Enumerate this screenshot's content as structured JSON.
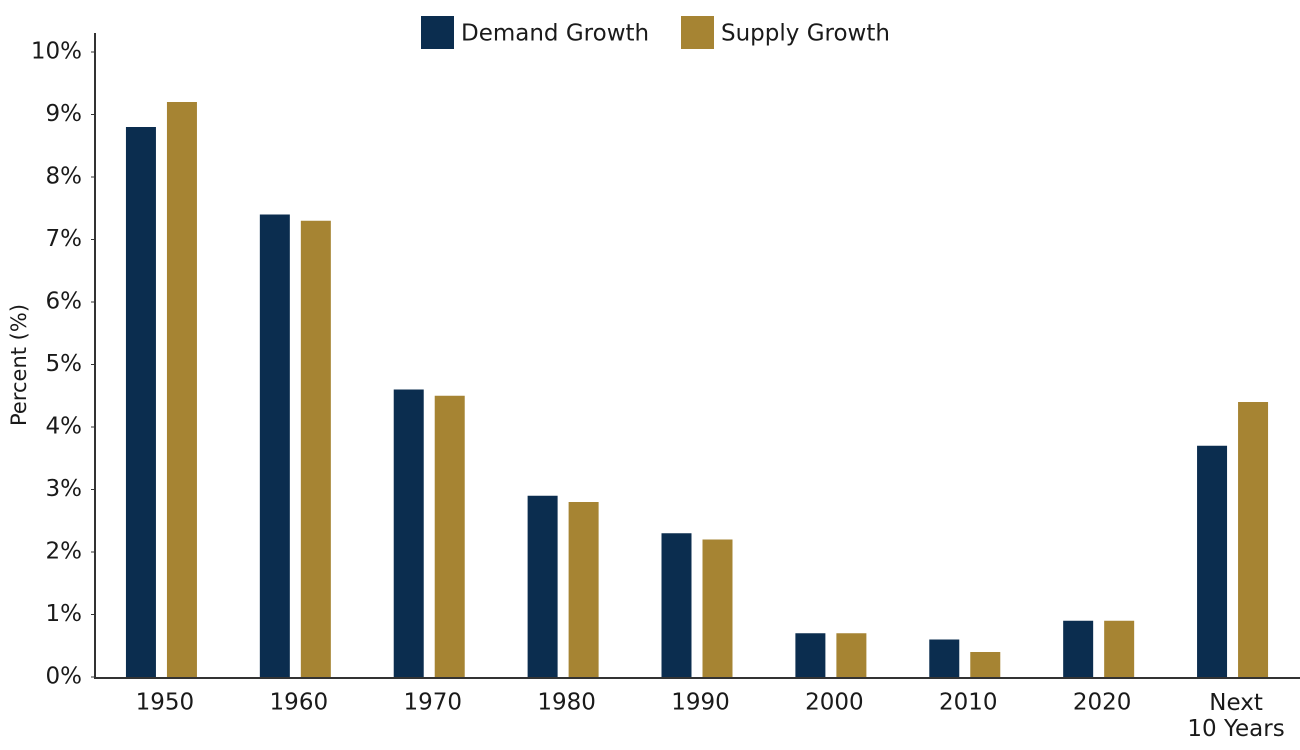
{
  "chart_data": {
    "type": "bar",
    "y_label": "Percent (%)",
    "categories": [
      "1950",
      "1960",
      "1970",
      "1980",
      "1990",
      "2000",
      "2010",
      "2020",
      "Next 10 Years"
    ],
    "series": [
      {
        "name": "Demand Growth",
        "color": "#0b2d4f",
        "values": [
          8.8,
          7.4,
          4.6,
          2.9,
          2.3,
          0.7,
          0.6,
          0.9,
          3.7
        ]
      },
      {
        "name": "Supply Growth",
        "color": "#a68433",
        "values": [
          9.2,
          7.3,
          4.5,
          2.8,
          2.2,
          0.7,
          0.4,
          0.9,
          4.4
        ]
      }
    ],
    "ylim": [
      0,
      10
    ],
    "yticks": [
      {
        "value": 0,
        "label": "0%"
      },
      {
        "value": 1,
        "label": "1%"
      },
      {
        "value": 2,
        "label": "2%"
      },
      {
        "value": 3,
        "label": "3%"
      },
      {
        "value": 4,
        "label": "4%"
      },
      {
        "value": 5,
        "label": "5%"
      },
      {
        "value": 6,
        "label": "6%"
      },
      {
        "value": 7,
        "label": "7%"
      },
      {
        "value": 8,
        "label": "8%"
      },
      {
        "value": 9,
        "label": "9%"
      },
      {
        "value": 10,
        "label": "10%"
      }
    ],
    "grid": false
  }
}
